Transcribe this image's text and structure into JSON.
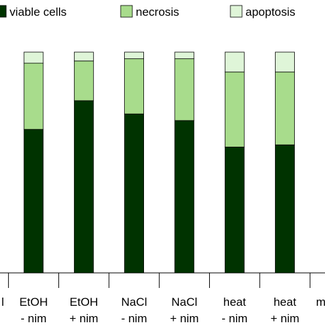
{
  "chart_data": {
    "type": "stacked_bar",
    "categories": [
      [
        "l"
      ],
      [
        "EtOH",
        "- nim"
      ],
      [
        "EtOH",
        "+ nim"
      ],
      [
        "NaCl",
        "- nim"
      ],
      [
        "NaCl",
        "+ nim"
      ],
      [
        "heat",
        "- nim"
      ],
      [
        "heat",
        "+ nim"
      ],
      [
        "m"
      ]
    ],
    "series": [
      {
        "name": "viable cells",
        "color": "#003300",
        "values": [
          null,
          65,
          78,
          72,
          69,
          57,
          58,
          null
        ]
      },
      {
        "name": "necrosis",
        "color": "#a8dc8c",
        "values": [
          null,
          30,
          18,
          25,
          28,
          34,
          33,
          null
        ]
      },
      {
        "name": "apoptosis",
        "color": "#dff5d8",
        "values": [
          null,
          5,
          4,
          3,
          3,
          9,
          9,
          null
        ]
      }
    ],
    "ylim": [
      0,
      100
    ]
  }
}
